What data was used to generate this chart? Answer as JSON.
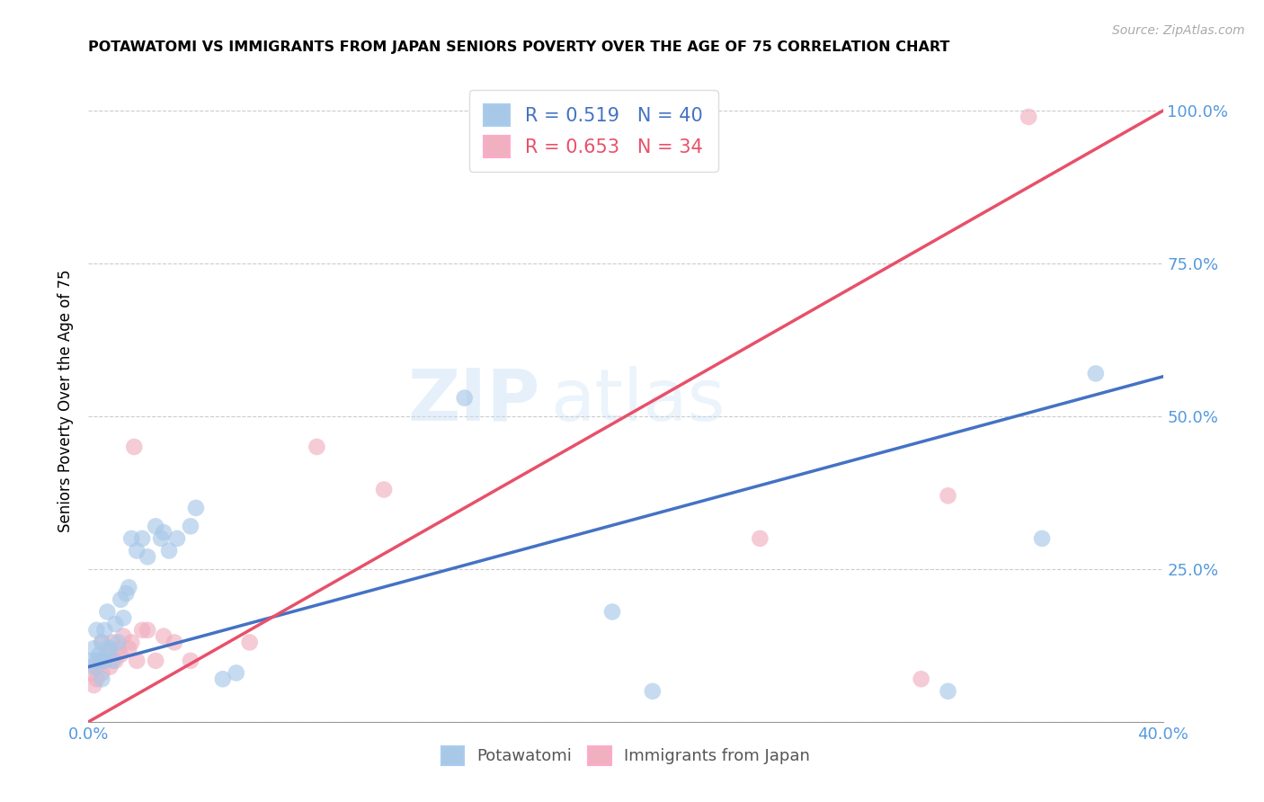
{
  "title": "POTAWATOMI VS IMMIGRANTS FROM JAPAN SENIORS POVERTY OVER THE AGE OF 75 CORRELATION CHART",
  "source": "Source: ZipAtlas.com",
  "ylabel_label": "Seniors Poverty Over the Age of 75",
  "xmin": 0.0,
  "xmax": 0.4,
  "ymin": 0.0,
  "ymax": 1.05,
  "blue_R": 0.519,
  "blue_N": 40,
  "pink_R": 0.653,
  "pink_N": 34,
  "blue_color": "#a8c8e8",
  "pink_color": "#f0b0c0",
  "blue_line_color": "#4472c4",
  "pink_line_color": "#e8506a",
  "watermark_zip": "ZIP",
  "watermark_atlas": "atlas",
  "blue_line_x0": 0.0,
  "blue_line_y0": 0.09,
  "blue_line_x1": 0.4,
  "blue_line_y1": 0.565,
  "pink_line_x0": 0.0,
  "pink_line_y0": 0.0,
  "pink_line_x1": 0.4,
  "pink_line_y1": 1.0,
  "blue_x": [
    0.001,
    0.002,
    0.002,
    0.003,
    0.003,
    0.004,
    0.004,
    0.005,
    0.005,
    0.006,
    0.006,
    0.007,
    0.007,
    0.008,
    0.009,
    0.01,
    0.011,
    0.012,
    0.013,
    0.014,
    0.015,
    0.016,
    0.018,
    0.02,
    0.022,
    0.025,
    0.027,
    0.028,
    0.03,
    0.033,
    0.038,
    0.04,
    0.05,
    0.055,
    0.14,
    0.195,
    0.21,
    0.32,
    0.355,
    0.375
  ],
  "blue_y": [
    0.1,
    0.09,
    0.12,
    0.1,
    0.15,
    0.11,
    0.1,
    0.07,
    0.13,
    0.1,
    0.15,
    0.12,
    0.18,
    0.12,
    0.1,
    0.16,
    0.13,
    0.2,
    0.17,
    0.21,
    0.22,
    0.3,
    0.28,
    0.3,
    0.27,
    0.32,
    0.3,
    0.31,
    0.28,
    0.3,
    0.32,
    0.35,
    0.07,
    0.08,
    0.53,
    0.18,
    0.05,
    0.05,
    0.3,
    0.57
  ],
  "pink_x": [
    0.001,
    0.002,
    0.003,
    0.003,
    0.004,
    0.005,
    0.005,
    0.006,
    0.007,
    0.008,
    0.009,
    0.01,
    0.011,
    0.012,
    0.013,
    0.015,
    0.016,
    0.017,
    0.018,
    0.02,
    0.022,
    0.025,
    0.028,
    0.032,
    0.038,
    0.06,
    0.085,
    0.11,
    0.16,
    0.175,
    0.25,
    0.31,
    0.32,
    0.35
  ],
  "pink_y": [
    0.08,
    0.06,
    0.09,
    0.07,
    0.1,
    0.13,
    0.08,
    0.1,
    0.11,
    0.09,
    0.13,
    0.1,
    0.12,
    0.11,
    0.14,
    0.12,
    0.13,
    0.45,
    0.1,
    0.15,
    0.15,
    0.1,
    0.14,
    0.13,
    0.1,
    0.13,
    0.45,
    0.38,
    0.99,
    0.99,
    0.3,
    0.07,
    0.37,
    0.99
  ]
}
